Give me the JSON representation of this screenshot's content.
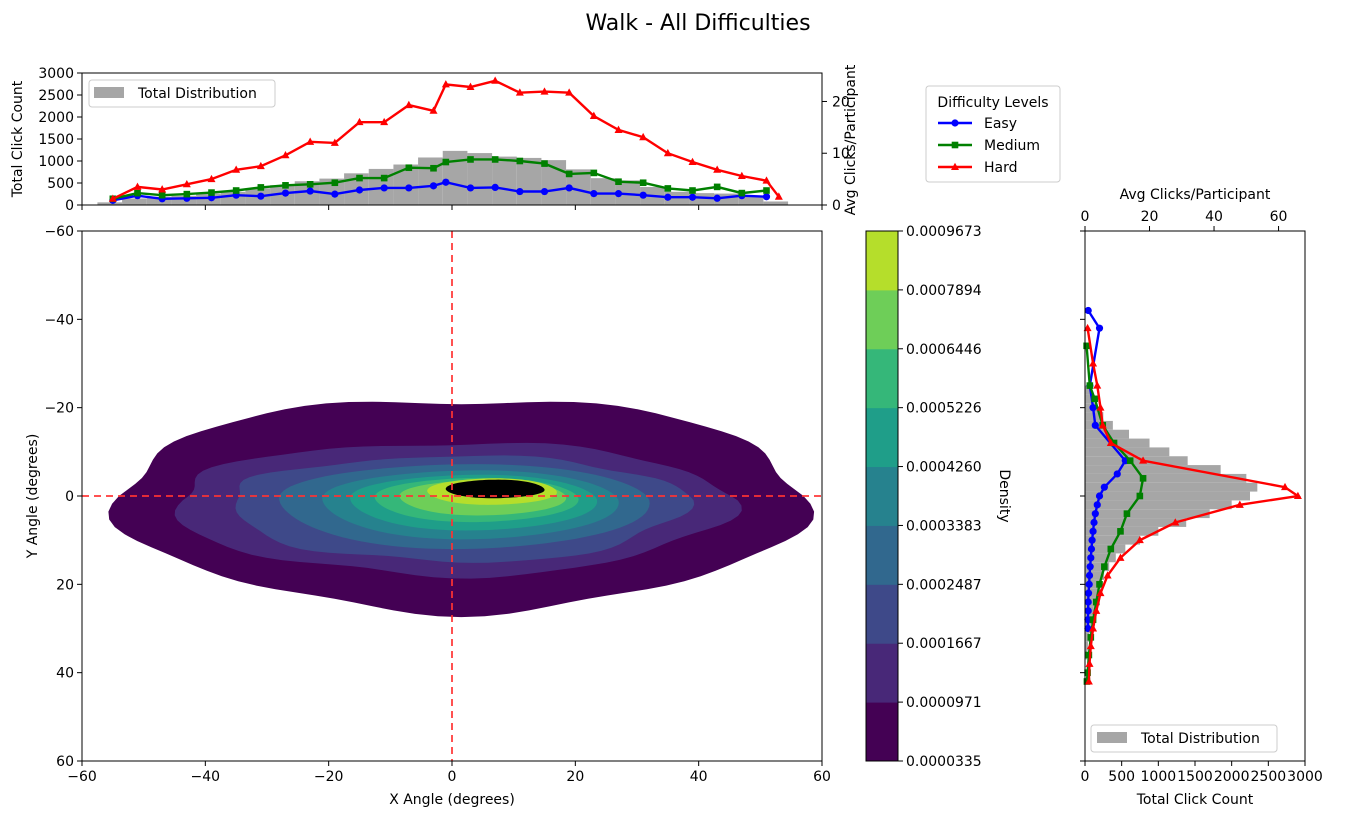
{
  "figure_title": "Walk - All Difficulties",
  "colors": {
    "easy": "#0000ff",
    "medium": "#008000",
    "hard": "#ff0000",
    "total": "#a6a6a6",
    "crosshair": "#ff3333"
  },
  "chart_data": [
    {
      "type": "bar",
      "panel": "top-marginal",
      "xlim": [
        -60,
        60
      ],
      "ylabel": "Total Click Count",
      "ylim": [
        0,
        3000
      ],
      "yticks": [
        0,
        500,
        1000,
        1500,
        2000,
        2500,
        3000
      ],
      "y2label": "Avg Clicks/Participant",
      "y2lim": [
        0,
        25.5
      ],
      "y2ticks": [
        0,
        10,
        20
      ],
      "legend": {
        "placement": "upper left",
        "entries": [
          "Total Distribution"
        ]
      },
      "hist": {
        "name": "Total Distribution",
        "x": [
          -55.5,
          -51.5,
          -47.5,
          -43.5,
          -39.5,
          -35.5,
          -31.5,
          -27.5,
          -23.5,
          -19.5,
          -15.5,
          -11.5,
          -7.5,
          -3.5,
          0.5,
          4.5,
          8.5,
          12.5,
          16.5,
          20.5,
          24.5,
          28.5,
          32.5,
          36.5,
          40.5,
          44.5,
          48.5,
          52.5
        ],
        "values": [
          60,
          150,
          190,
          210,
          260,
          300,
          380,
          450,
          540,
          600,
          720,
          820,
          920,
          1080,
          1230,
          1180,
          1100,
          1070,
          1020,
          810,
          610,
          560,
          410,
          300,
          270,
          260,
          190,
          80
        ]
      },
      "series": [
        {
          "name": "Easy",
          "marker": "circle",
          "x": [
            -55,
            -51,
            -47,
            -43,
            -39,
            -35,
            -31,
            -27,
            -23,
            -19,
            -15,
            -11,
            -7,
            -3,
            -1,
            3,
            7,
            11,
            15,
            19,
            23,
            27,
            31,
            35,
            39,
            43,
            47,
            51
          ],
          "values": [
            0.9,
            1.8,
            1.2,
            1.3,
            1.4,
            1.9,
            1.7,
            2.3,
            2.7,
            2.1,
            2.9,
            3.3,
            3.3,
            3.7,
            4.4,
            3.3,
            3.4,
            2.6,
            2.6,
            3.3,
            2.2,
            2.2,
            1.9,
            1.5,
            1.5,
            1.3,
            1.8,
            1.6
          ]
        },
        {
          "name": "Medium",
          "marker": "square",
          "x": [
            -55,
            -51,
            -47,
            -43,
            -39,
            -35,
            -31,
            -27,
            -23,
            -19,
            -15,
            -11,
            -7,
            -3,
            -1,
            3,
            7,
            11,
            15,
            19,
            23,
            27,
            31,
            35,
            39,
            43,
            47,
            51
          ],
          "values": [
            1.2,
            2.3,
            1.9,
            2.1,
            2.4,
            2.8,
            3.4,
            3.8,
            4.0,
            4.3,
            5.2,
            5.2,
            7.2,
            7.1,
            8.3,
            8.8,
            8.8,
            8.5,
            8.0,
            6.0,
            6.2,
            4.5,
            4.3,
            3.2,
            2.8,
            3.5,
            2.3,
            2.8
          ]
        },
        {
          "name": "Hard",
          "marker": "triangle",
          "x": [
            -55,
            -51,
            -47,
            -43,
            -39,
            -35,
            -31,
            -27,
            -23,
            -19,
            -15,
            -11,
            -7,
            -3,
            -1,
            3,
            7,
            11,
            15,
            19,
            23,
            27,
            31,
            35,
            39,
            43,
            47,
            51,
            53
          ],
          "values": [
            1.2,
            3.5,
            3.0,
            4.0,
            5.0,
            6.8,
            7.5,
            9.6,
            12.2,
            12.0,
            16.0,
            16.0,
            19.3,
            18.2,
            23.3,
            22.8,
            24.0,
            21.7,
            21.9,
            21.7,
            17.2,
            14.5,
            13.1,
            10.0,
            8.3,
            6.8,
            5.6,
            4.7,
            1.6
          ]
        }
      ]
    },
    {
      "type": "heatmap",
      "panel": "main-kde",
      "xlabel": "X Angle (degrees)",
      "ylabel": "Y Angle (degrees)",
      "xlim": [
        -60,
        60
      ],
      "ylim": [
        60,
        -60
      ],
      "xticks": [
        -60,
        -40,
        -20,
        0,
        20,
        40,
        60
      ],
      "yticks": [
        -60,
        -40,
        -20,
        0,
        20,
        40,
        60
      ],
      "crosshair": {
        "x": 0,
        "y": 0
      },
      "contours": [
        {
          "cx": 1.5,
          "cy": 0,
          "rx": 55.5,
          "ry_top": 22,
          "ry_bottom": 26
        },
        {
          "cx": 0,
          "cy": 1,
          "rx": 45,
          "ry_top": 13,
          "ry_bottom": 17
        },
        {
          "cx": 1,
          "cy": 1,
          "rx": 37,
          "ry_top": 10,
          "ry_bottom": 14
        },
        {
          "cx": 2,
          "cy": 1,
          "rx": 30,
          "ry_top": 8.2,
          "ry_bottom": 11
        },
        {
          "cx": 3,
          "cy": 1,
          "rx": 24,
          "ry_top": 6.8,
          "ry_bottom": 8.8
        },
        {
          "cx": 3.5,
          "cy": 0.8,
          "rx": 20,
          "ry_top": 5.6,
          "ry_bottom": 7.0
        },
        {
          "cx": 4,
          "cy": 0.5,
          "rx": 16.5,
          "ry_top": 4.6,
          "ry_bottom": 5.4
        },
        {
          "cx": 5,
          "cy": 0.2,
          "rx": 13.5,
          "ry_top": 3.8,
          "ry_bottom": 4.2
        },
        {
          "cx": 6.5,
          "cy": -1.0,
          "rx": 10.5,
          "ry_top": 3.0,
          "ry_bottom": 3.0
        },
        {
          "cx": 7,
          "cy": -1.5,
          "rx": 8.0,
          "ry_top": 2.2,
          "ry_bottom": 2.0
        }
      ]
    },
    {
      "type": "heatmap",
      "panel": "colorbar",
      "label": "Density",
      "levels": [
        "0.0000335",
        "0.0000971",
        "0.0001667",
        "0.0002487",
        "0.0003383",
        "0.0004260",
        "0.0005226",
        "0.0006446",
        "0.0007894",
        "0.0009673"
      ],
      "band_colors": [
        "#440154",
        "#482878",
        "#3e4989",
        "#31688e",
        "#26828e",
        "#1f9e89",
        "#35b779",
        "#6ece58",
        "#b5de2b"
      ]
    },
    {
      "type": "bar",
      "panel": "right-marginal",
      "orientation": "horizontal",
      "ylim": [
        60,
        -60
      ],
      "xlabel": "Total Click Count",
      "xlim": [
        0,
        3000
      ],
      "xticks": [
        0,
        500,
        1000,
        1500,
        2000,
        2500,
        3000
      ],
      "x2label": "Avg Clicks/Participant",
      "x2lim": [
        0,
        68.2
      ],
      "x2ticks": [
        0,
        20,
        40,
        60
      ],
      "legend": {
        "placement": "lower left",
        "entries": [
          "Total Distribution"
        ]
      },
      "hist": {
        "name": "Total Distribution",
        "y": [
          -24,
          -22,
          -20,
          -18,
          -16,
          -14,
          -12,
          -10,
          -8,
          -6,
          -4,
          -2,
          0,
          2,
          4,
          6,
          8,
          10,
          12,
          14,
          16,
          18,
          20,
          22,
          24,
          26,
          28,
          30,
          32,
          34,
          36
        ],
        "values": [
          70,
          120,
          170,
          250,
          380,
          600,
          880,
          1150,
          1400,
          1850,
          2200,
          2350,
          2250,
          2000,
          1700,
          1380,
          1000,
          750,
          550,
          420,
          330,
          260,
          220,
          180,
          150,
          120,
          100,
          80,
          60,
          40,
          30
        ]
      },
      "series": [
        {
          "name": "Easy",
          "marker": "circle",
          "y": [
            -42,
            -38,
            -25,
            -20,
            -16,
            -8,
            -5,
            -2,
            0,
            2,
            4,
            6,
            8,
            10,
            12,
            14,
            16,
            18,
            20,
            22,
            24,
            26,
            28,
            30
          ],
          "values": [
            1,
            4.5,
            1.5,
            2.5,
            3.2,
            12.5,
            10,
            6,
            4.5,
            3.8,
            3.2,
            2.8,
            2.5,
            2.2,
            2,
            1.8,
            1.6,
            1.4,
            1.3,
            1.1,
            1,
            1,
            0.9,
            0.9
          ]
        },
        {
          "name": "Medium",
          "marker": "square",
          "y": [
            -34,
            -25,
            -22,
            -16,
            -12,
            -8,
            -4,
            0,
            4,
            8,
            12,
            16,
            20,
            24,
            28,
            32,
            36,
            40,
            42
          ],
          "values": [
            0.5,
            1.5,
            3.0,
            5.5,
            9,
            14,
            18,
            17,
            13,
            11,
            8,
            6,
            4.5,
            3.5,
            2.5,
            1.8,
            1.2,
            0.8,
            0.6
          ]
        },
        {
          "name": "Hard",
          "marker": "triangle",
          "y": [
            -38,
            -30,
            -25,
            -20,
            -16,
            -12,
            -8,
            -2,
            0,
            2,
            6,
            10,
            14,
            18,
            22,
            26,
            30,
            34,
            38,
            42
          ],
          "values": [
            0.8,
            2.5,
            3.8,
            4.8,
            5.5,
            8,
            18,
            62,
            66,
            48,
            28,
            17,
            11,
            7,
            4.8,
            3.5,
            2.5,
            1.8,
            1.4,
            1.2
          ]
        }
      ]
    }
  ],
  "legend": {
    "title": "Difficulty Levels",
    "items": [
      {
        "name": "Easy",
        "color": "#0000ff",
        "marker": "circle"
      },
      {
        "name": "Medium",
        "color": "#008000",
        "marker": "square"
      },
      {
        "name": "Hard",
        "color": "#ff0000",
        "marker": "triangle"
      }
    ]
  }
}
